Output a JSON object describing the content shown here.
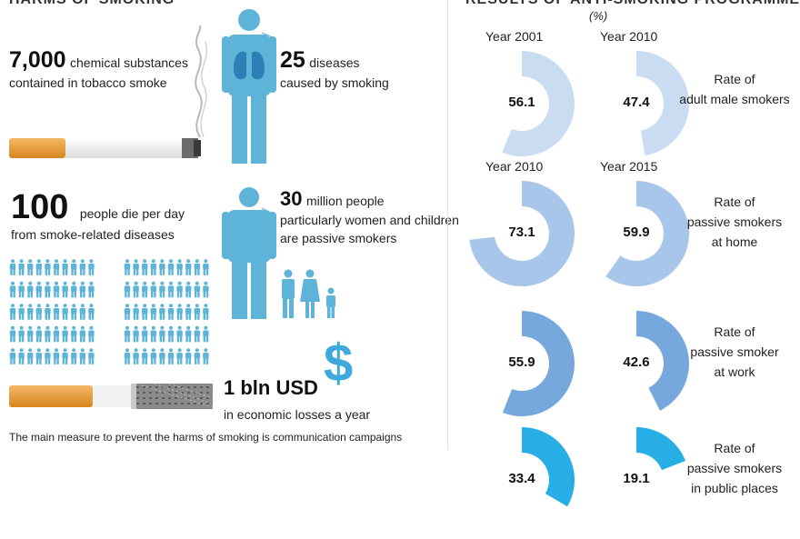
{
  "left": {
    "header": "HARMS OF SMOKING",
    "stat1": {
      "value": "7,000",
      "line1": "chemical substances",
      "line2": "contained in tobacco smoke"
    },
    "stat2": {
      "value": "25",
      "line1": "diseases",
      "line2": "caused by smoking"
    },
    "stat3": {
      "value": "100",
      "line1": "people die per day",
      "line2": "from smoke-related diseases"
    },
    "stat4": {
      "value": "30",
      "line1": "million people",
      "line2": "particularly women and children",
      "line3": "are passive smokers"
    },
    "stat5": {
      "value": "1 bln USD",
      "line1": "in economic losses a year"
    },
    "footer": "The main measure to prevent the harms of smoking is communication campaigns"
  },
  "right": {
    "header": "RESULTS OF ANTI-SMOKING PROGRAMMES",
    "unit": "(%)",
    "rows": [
      {
        "year_a": "Year 2001",
        "year_b": "Year 2010",
        "value_a": "56.1",
        "value_b": "47.4",
        "label": [
          "Rate of",
          "adult male smokers"
        ],
        "color": "#c9dcf1"
      },
      {
        "year_a": "Year 2010",
        "year_b": "Year 2015",
        "value_a": "73.1",
        "value_b": "59.9",
        "label": [
          "Rate of",
          "passive smokers",
          "at home"
        ],
        "color": "#a7c6e9"
      },
      {
        "year_a": "",
        "year_b": "",
        "value_a": "55.9",
        "value_b": "42.6",
        "label": [
          "Rate of",
          "passive smoker",
          "at work"
        ],
        "color": "#77a8dd"
      },
      {
        "year_a": "",
        "year_b": "",
        "value_a": "33.4",
        "value_b": "19.1",
        "label": [
          "Rate of",
          "passive smokers",
          "in public places"
        ],
        "color": "#27aee5"
      }
    ]
  },
  "colors": {
    "figure": "#5eb3d8",
    "lung": "#2f7fb7",
    "dollar": "#3fa9dc"
  },
  "icons": {
    "person": "person-icon",
    "dollar": "dollar-icon",
    "cigarette": "cigarette-icon"
  }
}
